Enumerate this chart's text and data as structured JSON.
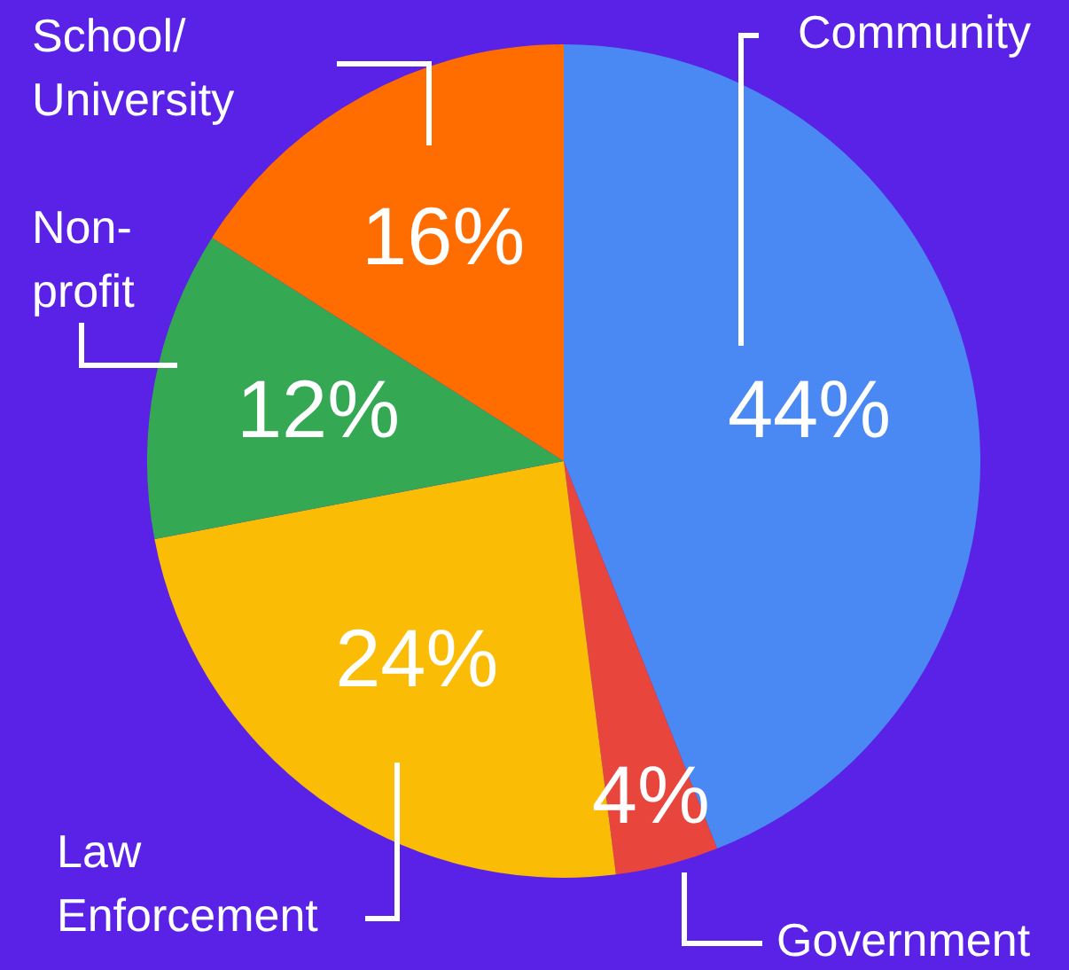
{
  "chart_data": {
    "type": "pie",
    "categories": [
      "Community",
      "Government",
      "Law Enforcement",
      "Non-profit",
      "School/University"
    ],
    "values": [
      44,
      4,
      24,
      12,
      16
    ],
    "value_labels": [
      "44%",
      "4%",
      "24%",
      "12%",
      "16%"
    ],
    "colors": [
      "#4a89f3",
      "#e8453c",
      "#fbbc05",
      "#34a853",
      "#ff6d01"
    ],
    "legend": false
  }
}
